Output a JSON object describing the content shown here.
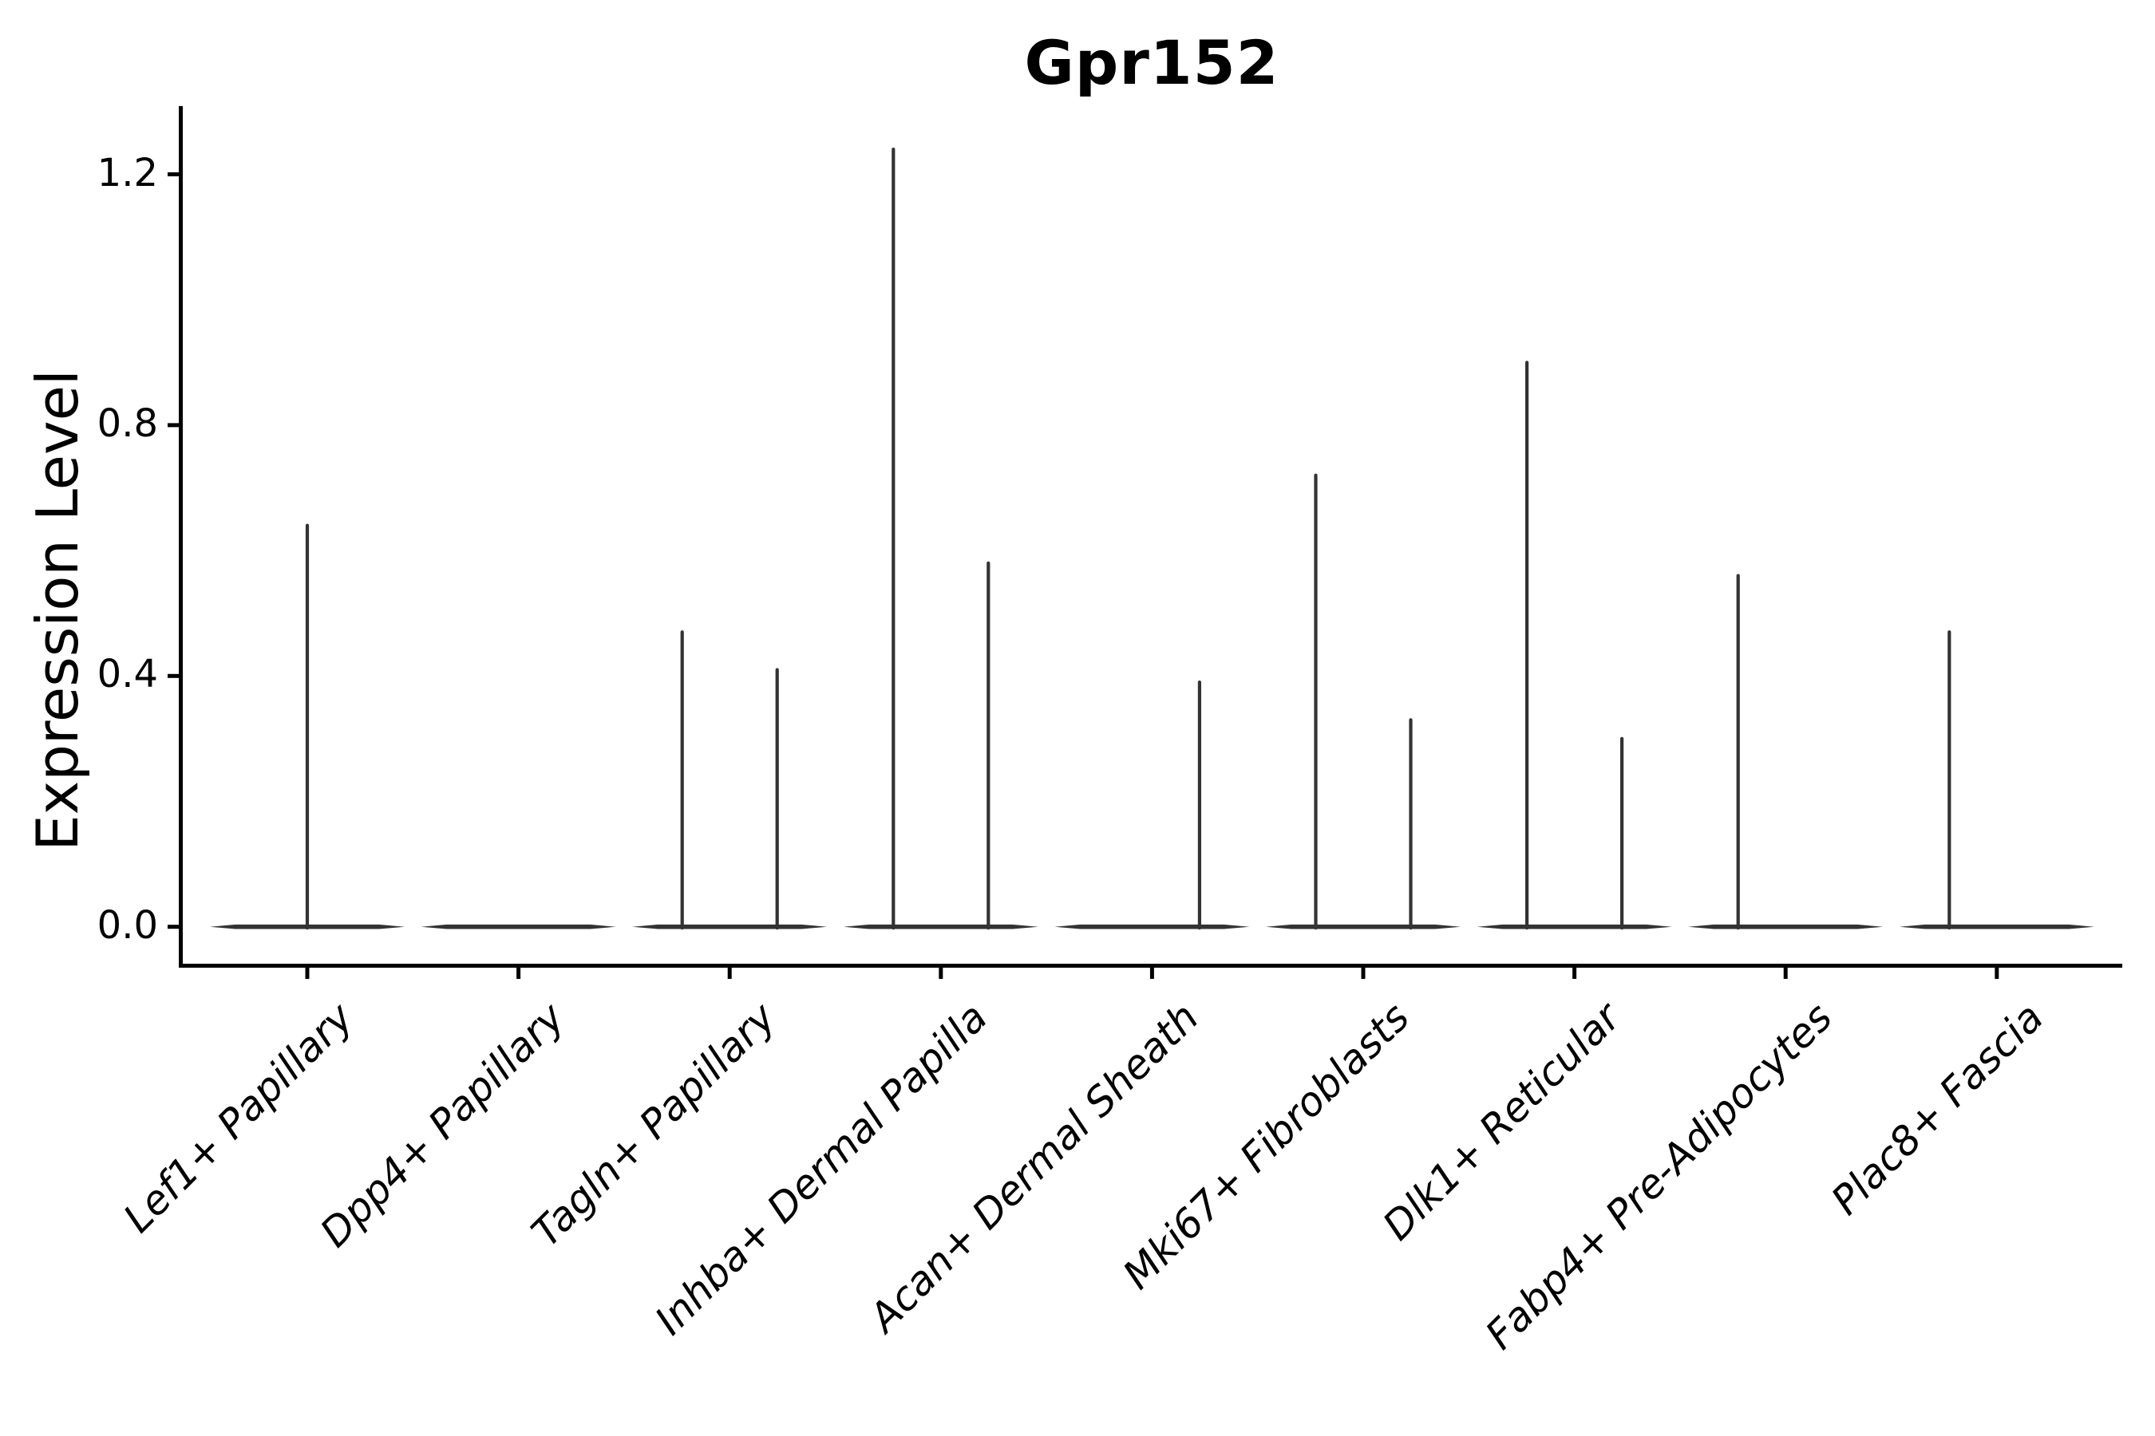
{
  "chart_data": {
    "type": "violin",
    "title": "Gpr152",
    "xlabel": "",
    "ylabel": "Expression Level",
    "ylim": [
      0,
      1.3
    ],
    "ytick_labels": [
      "0.0",
      "0.4",
      "0.8",
      "1.2"
    ],
    "ytick_values": [
      0.0,
      0.4,
      0.8,
      1.2
    ],
    "grid": "off",
    "legend": "none",
    "categories": [
      "Lef1+ Papillary",
      "Dpp4+ Papillary",
      "Tagln+ Papillary",
      "Inhba+ Dermal Papilla",
      "Acan+ Dermal Sheath",
      "Mki67+ Fibroblasts",
      "Dlk1+ Reticular",
      "Fabp4+ Pre-Adipocytes",
      "Plac8+ Fascia"
    ],
    "series": [
      {
        "category": "Lef1+ Papillary",
        "baseline_value": 0.0,
        "spikes": [
          {
            "pos": "center",
            "max": 0.64
          }
        ]
      },
      {
        "category": "Dpp4+ Papillary",
        "baseline_value": 0.0,
        "spikes": []
      },
      {
        "category": "Tagln+ Papillary",
        "baseline_value": 0.0,
        "spikes": [
          {
            "pos": "left",
            "max": 0.47
          },
          {
            "pos": "right",
            "max": 0.41
          }
        ]
      },
      {
        "category": "Inhba+ Dermal Papilla",
        "baseline_value": 0.0,
        "spikes": [
          {
            "pos": "left",
            "max": 1.24
          },
          {
            "pos": "right",
            "max": 0.58
          }
        ]
      },
      {
        "category": "Acan+ Dermal Sheath",
        "baseline_value": 0.0,
        "spikes": [
          {
            "pos": "right",
            "max": 0.39
          }
        ]
      },
      {
        "category": "Mki67+ Fibroblasts",
        "baseline_value": 0.0,
        "spikes": [
          {
            "pos": "left",
            "max": 0.72
          },
          {
            "pos": "right",
            "max": 0.33
          }
        ]
      },
      {
        "category": "Dlk1+ Reticular",
        "baseline_value": 0.0,
        "spikes": [
          {
            "pos": "left",
            "max": 0.9
          },
          {
            "pos": "right",
            "max": 0.3
          }
        ]
      },
      {
        "category": "Fabp4+ Pre-Adipocytes",
        "baseline_value": 0.0,
        "spikes": [
          {
            "pos": "left",
            "max": 0.56
          }
        ]
      },
      {
        "category": "Plac8+ Fascia",
        "baseline_value": 0.0,
        "spikes": [
          {
            "pos": "left",
            "max": 0.47
          }
        ]
      }
    ],
    "colors": {
      "violin": "#333333",
      "axis": "#000000",
      "text": "#000000",
      "background": "#ffffff"
    }
  }
}
